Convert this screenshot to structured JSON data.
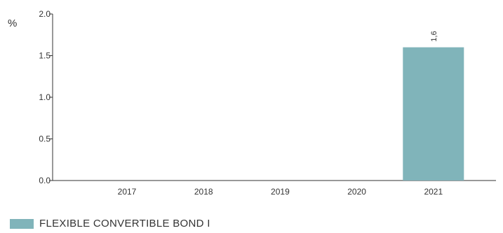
{
  "chart_data": {
    "type": "bar",
    "unit_label": "%",
    "categories": [
      "2017",
      "2018",
      "2019",
      "2020",
      "2021"
    ],
    "series": [
      {
        "name": "FLEXIBLE CONVERTIBLE BOND I",
        "color": "#80b4ba",
        "values": [
          null,
          null,
          null,
          null,
          1.6
        ],
        "value_labels": [
          "",
          "",
          "",
          "",
          "1,6"
        ]
      }
    ],
    "ylim": [
      0,
      2.0
    ],
    "yticks": [
      "0.0",
      "0.5",
      "1.0",
      "1.5",
      "2.0"
    ],
    "grid": false,
    "legend_position": "bottom-left"
  }
}
